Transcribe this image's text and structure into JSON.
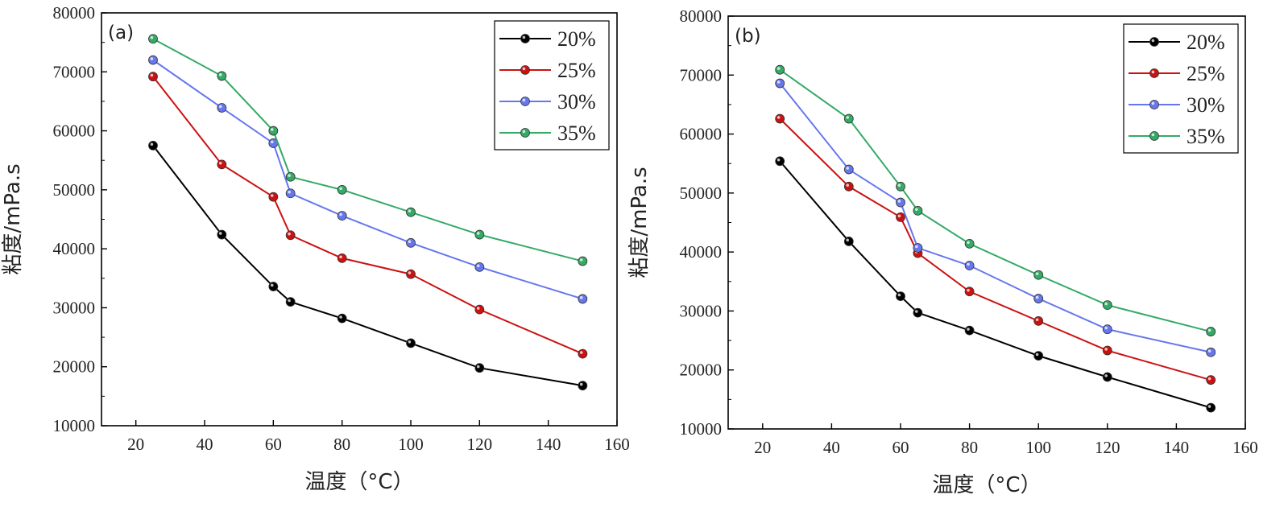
{
  "colors": {
    "20%": "#000000",
    "25%": "#cc1111",
    "30%": "#6677ee",
    "35%": "#33aa66"
  },
  "chart_data": [
    {
      "type": "line",
      "panel_label": "(a)",
      "xlabel": "温度（°C）",
      "ylabel": "粘度/mPa.s",
      "xlim": [
        10,
        160
      ],
      "ylim": [
        10000,
        80000
      ],
      "xticks": [
        "20",
        "40",
        "60",
        "80",
        "100",
        "120",
        "140",
        "160"
      ],
      "yticks": [
        "10000",
        "20000",
        "30000",
        "40000",
        "50000",
        "60000",
        "70000",
        "80000"
      ],
      "legend_position": "top-right",
      "x": [
        25,
        45,
        60,
        65,
        80,
        100,
        120,
        150
      ],
      "series": [
        {
          "name": "20%",
          "values": [
            57500,
            42400,
            33600,
            31000,
            28200,
            24000,
            19800,
            16800
          ]
        },
        {
          "name": "25%",
          "values": [
            69200,
            54300,
            48800,
            42300,
            38400,
            35700,
            29700,
            22200
          ]
        },
        {
          "name": "30%",
          "values": [
            72000,
            63900,
            57900,
            49400,
            45600,
            41000,
            36900,
            31500
          ]
        },
        {
          "name": "35%",
          "values": [
            75600,
            69300,
            60000,
            52200,
            50000,
            46200,
            42400,
            37900
          ]
        }
      ]
    },
    {
      "type": "line",
      "panel_label": "(b)",
      "xlabel": "温度（°C）",
      "ylabel": "粘度/mPa.s",
      "xlim": [
        10,
        160
      ],
      "ylim": [
        10000,
        80000
      ],
      "xticks": [
        "20",
        "40",
        "60",
        "80",
        "100",
        "120",
        "140",
        "160"
      ],
      "yticks": [
        "10000",
        "20000",
        "30000",
        "40000",
        "50000",
        "60000",
        "70000",
        "80000"
      ],
      "legend_position": "top-right",
      "x": [
        25,
        45,
        60,
        65,
        80,
        100,
        120,
        150
      ],
      "series": [
        {
          "name": "20%",
          "values": [
            55400,
            41800,
            32500,
            29700,
            26700,
            22400,
            18800,
            13600
          ]
        },
        {
          "name": "25%",
          "values": [
            62600,
            51100,
            45900,
            39800,
            33300,
            28300,
            23300,
            18300
          ]
        },
        {
          "name": "30%",
          "values": [
            68600,
            54000,
            48400,
            40700,
            37700,
            32100,
            26900,
            23000
          ]
        },
        {
          "name": "35%",
          "values": [
            70900,
            62600,
            51100,
            47000,
            41400,
            36100,
            31000,
            26500
          ]
        }
      ]
    }
  ]
}
